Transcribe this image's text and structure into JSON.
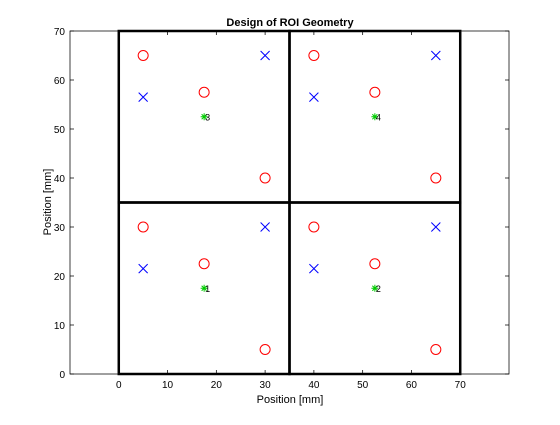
{
  "chart_data": {
    "type": "scatter",
    "title": "Design of ROI Geometry",
    "xlabel": "Position [mm]",
    "ylabel": "Position [mm]",
    "xlim": [
      -10,
      80
    ],
    "ylim": [
      0,
      70
    ],
    "xticks": [
      0,
      10,
      20,
      30,
      40,
      50,
      60,
      70
    ],
    "yticks": [
      0,
      10,
      20,
      30,
      40,
      50,
      60,
      70
    ],
    "grid": false,
    "box": true,
    "series": [
      {
        "marker": "circle",
        "color": "#ff0000",
        "points": [
          [
            5,
            65
          ],
          [
            17.5,
            57.5
          ],
          [
            30,
            40
          ],
          [
            40,
            65
          ],
          [
            52.5,
            57.5
          ],
          [
            65,
            40
          ],
          [
            5,
            30
          ],
          [
            17.5,
            22.5
          ],
          [
            30,
            5
          ],
          [
            40,
            30
          ],
          [
            52.5,
            22.5
          ],
          [
            65,
            5
          ]
        ]
      },
      {
        "marker": "x",
        "color": "#0000ff",
        "points": [
          [
            5,
            56.5
          ],
          [
            30,
            65
          ],
          [
            40,
            56.5
          ],
          [
            65,
            65
          ],
          [
            5,
            21.5
          ],
          [
            30,
            30
          ],
          [
            40,
            21.5
          ],
          [
            65,
            30
          ]
        ]
      },
      {
        "marker": "asterisk",
        "color": "#00cc00",
        "points": [
          [
            17.5,
            52.5
          ],
          [
            52.5,
            52.5
          ],
          [
            17.5,
            17.5
          ],
          [
            52.5,
            17.5
          ]
        ]
      }
    ],
    "rois": [
      {
        "label": "1",
        "center": [
          17.5,
          17.5
        ],
        "x": [
          0,
          35
        ],
        "y": [
          0,
          35
        ]
      },
      {
        "label": "2",
        "center": [
          52.5,
          17.5
        ],
        "x": [
          35,
          70
        ],
        "y": [
          0,
          35
        ]
      },
      {
        "label": "3",
        "center": [
          17.5,
          52.5
        ],
        "x": [
          0,
          35
        ],
        "y": [
          35,
          70
        ]
      },
      {
        "label": "4",
        "center": [
          52.5,
          52.5
        ],
        "x": [
          35,
          70
        ],
        "y": [
          35,
          70
        ]
      }
    ]
  }
}
